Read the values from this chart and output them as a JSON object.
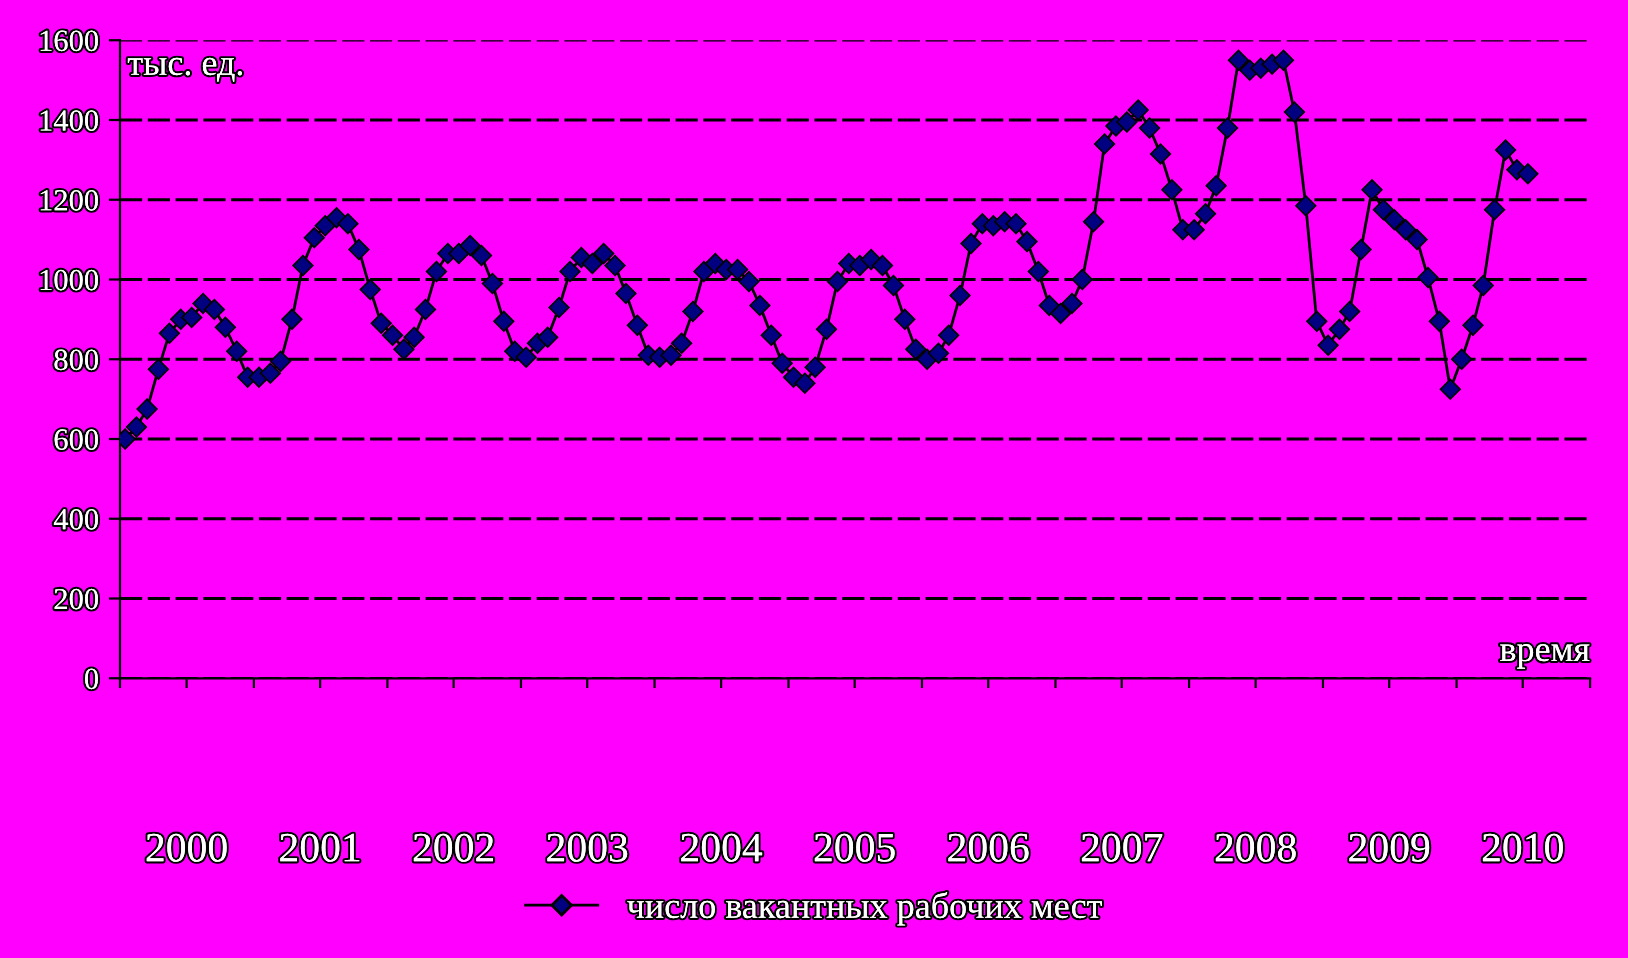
{
  "chart_data": {
    "type": "line",
    "ylabel": "тыс. ед.",
    "xlabel": "время",
    "x": [
      "2000-01",
      "2000-02",
      "2000-03",
      "2000-04",
      "2000-05",
      "2000-06",
      "2000-07",
      "2000-08",
      "2000-09",
      "2000-10",
      "2000-11",
      "2000-12",
      "2001-01",
      "2001-02",
      "2001-03",
      "2001-04",
      "2001-05",
      "2001-06",
      "2001-07",
      "2001-08",
      "2001-09",
      "2001-10",
      "2001-11",
      "2001-12",
      "2002-01",
      "2002-02",
      "2002-03",
      "2002-04",
      "2002-05",
      "2002-06",
      "2002-07",
      "2002-08",
      "2002-09",
      "2002-10",
      "2002-11",
      "2002-12",
      "2003-01",
      "2003-02",
      "2003-03",
      "2003-04",
      "2003-05",
      "2003-06",
      "2003-07",
      "2003-08",
      "2003-09",
      "2003-10",
      "2003-11",
      "2003-12",
      "2004-01",
      "2004-02",
      "2004-03",
      "2004-04",
      "2004-05",
      "2004-06",
      "2004-07",
      "2004-08",
      "2004-09",
      "2004-10",
      "2004-11",
      "2004-12",
      "2005-01",
      "2005-02",
      "2005-03",
      "2005-04",
      "2005-05",
      "2005-06",
      "2005-07",
      "2005-08",
      "2005-09",
      "2005-10",
      "2005-11",
      "2005-12",
      "2006-01",
      "2006-02",
      "2006-03",
      "2006-04",
      "2006-05",
      "2006-06",
      "2006-07",
      "2006-08",
      "2006-09",
      "2006-10",
      "2006-11",
      "2006-12",
      "2007-01",
      "2007-02",
      "2007-03",
      "2007-04",
      "2007-05",
      "2007-06",
      "2007-07",
      "2007-08",
      "2007-09",
      "2007-10",
      "2007-11",
      "2007-12",
      "2008-01",
      "2008-02",
      "2008-03",
      "2008-04",
      "2008-05",
      "2008-06",
      "2008-07",
      "2008-08",
      "2008-09",
      "2008-10",
      "2008-11",
      "2008-12",
      "2009-01",
      "2009-02",
      "2009-03",
      "2009-04",
      "2009-05",
      "2009-06",
      "2009-07",
      "2009-08",
      "2009-09",
      "2009-10",
      "2009-11",
      "2009-12",
      "2010-01",
      "2010-02",
      "2010-03",
      "2010-04",
      "2010-05",
      "2010-06",
      "2010-07"
    ],
    "series": [
      {
        "name": "число вакантных рабочих мест",
        "color": "#000080",
        "values": [
          600,
          630,
          675,
          775,
          865,
          900,
          905,
          940,
          925,
          880,
          820,
          755,
          755,
          765,
          795,
          900,
          1035,
          1105,
          1135,
          1155,
          1140,
          1075,
          975,
          890,
          860,
          825,
          855,
          925,
          1020,
          1065,
          1065,
          1085,
          1060,
          990,
          895,
          820,
          805,
          840,
          855,
          930,
          1020,
          1055,
          1040,
          1065,
          1035,
          965,
          885,
          810,
          805,
          810,
          840,
          920,
          1020,
          1040,
          1025,
          1025,
          995,
          935,
          860,
          790,
          755,
          740,
          780,
          875,
          995,
          1040,
          1035,
          1050,
          1035,
          985,
          900,
          825,
          800,
          815,
          860,
          960,
          1090,
          1140,
          1135,
          1145,
          1140,
          1095,
          1020,
          935,
          915,
          940,
          1000,
          1145,
          1340,
          1385,
          1395,
          1425,
          1380,
          1315,
          1225,
          1125,
          1125,
          1165,
          1235,
          1380,
          1550,
          1525,
          1530,
          1540,
          1550,
          1420,
          1185,
          895,
          835,
          875,
          920,
          1075,
          1225,
          1175,
          1150,
          1125,
          1100,
          1005,
          895,
          725,
          800,
          885,
          985,
          1175,
          1325,
          1275,
          1265
        ]
      }
    ],
    "xlim": [
      "2000-01",
      "2011-01"
    ],
    "xticks": [
      {
        "value": "2000-01",
        "label": null
      },
      {
        "value": "2000-07",
        "label": "2000"
      },
      {
        "value": "2001-01",
        "label": null
      },
      {
        "value": "2001-07",
        "label": "2001"
      },
      {
        "value": "2002-01",
        "label": null
      },
      {
        "value": "2002-07",
        "label": "2002"
      },
      {
        "value": "2003-01",
        "label": null
      },
      {
        "value": "2003-07",
        "label": "2003"
      },
      {
        "value": "2004-01",
        "label": null
      },
      {
        "value": "2004-07",
        "label": "2004"
      },
      {
        "value": "2005-01",
        "label": null
      },
      {
        "value": "2005-07",
        "label": "2005"
      },
      {
        "value": "2006-01",
        "label": null
      },
      {
        "value": "2006-07",
        "label": "2006"
      },
      {
        "value": "2007-01",
        "label": null
      },
      {
        "value": "2007-07",
        "label": "2007"
      },
      {
        "value": "2008-01",
        "label": null
      },
      {
        "value": "2008-07",
        "label": "2008"
      },
      {
        "value": "2009-01",
        "label": null
      },
      {
        "value": "2009-07",
        "label": "2009"
      },
      {
        "value": "2010-01",
        "label": null
      },
      {
        "value": "2010-07",
        "label": "2010"
      },
      {
        "value": "2011-01",
        "label": null
      }
    ],
    "ylim": [
      0,
      1600
    ],
    "yticks": [
      0,
      200,
      400,
      600,
      800,
      1000,
      1200,
      1400,
      1600
    ],
    "grid": "y",
    "legend": "bottom",
    "marker": "diamond",
    "line_style": "solid"
  }
}
